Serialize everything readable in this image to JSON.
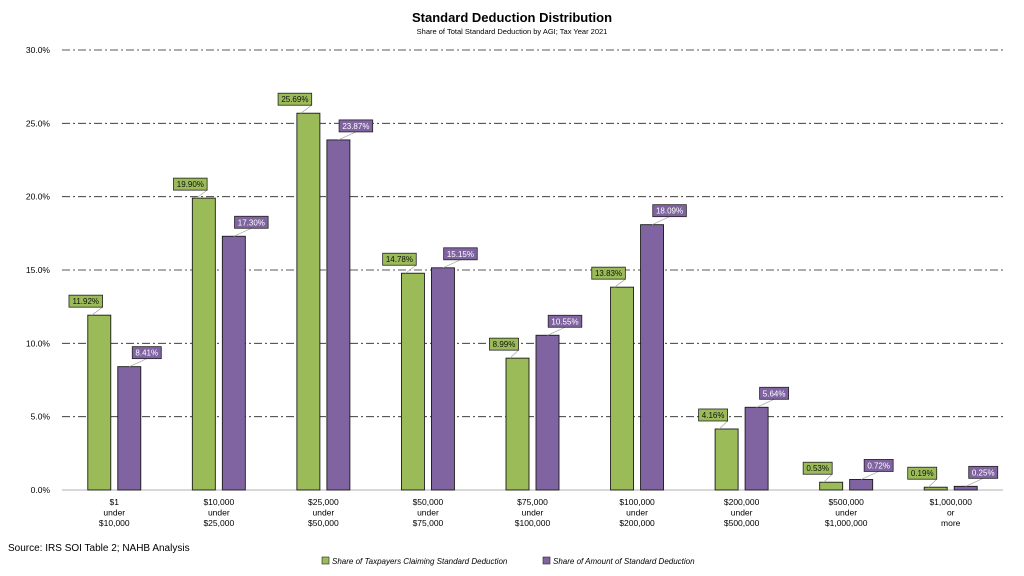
{
  "chart_data": {
    "type": "bar",
    "title": "Standard Deduction Distribution",
    "subtitle": "Share of Total Standard Deduction by AGI; Tax Year 2021",
    "categories": [
      [
        "$1",
        "under",
        "$10,000"
      ],
      [
        "$10,000",
        "under",
        "$25,000"
      ],
      [
        "$25,000",
        "under",
        "$50,000"
      ],
      [
        "$50,000",
        "under",
        "$75,000"
      ],
      [
        "$75,000",
        "under",
        "$100,000"
      ],
      [
        "$100,000",
        "under",
        "$200,000"
      ],
      [
        "$200,000",
        "under",
        "$500,000"
      ],
      [
        "$500,000",
        "under",
        "$1,000,000"
      ],
      [
        "$1,000,000",
        "or",
        "more"
      ]
    ],
    "series": [
      {
        "name": "Share of Taxpayers Claiming Standard Deduction",
        "color": "#9BBB59",
        "values": [
          11.92,
          19.9,
          25.69,
          14.78,
          8.99,
          13.83,
          4.16,
          0.53,
          0.19
        ],
        "labels": [
          "11.92%",
          "19.90%",
          "25.69%",
          "14.78%",
          "8.99%",
          "13.83%",
          "4.16%",
          "0.53%",
          "0.19%"
        ]
      },
      {
        "name": "Share of Amount of Standard Deduction",
        "color": "#8064A2",
        "values": [
          8.41,
          17.3,
          23.87,
          15.15,
          10.55,
          18.09,
          5.64,
          0.72,
          0.25
        ],
        "labels": [
          "8.41%",
          "17.30%",
          "23.87%",
          "15.15%",
          "10.55%",
          "18.09%",
          "5.64%",
          "0.72%",
          "0.25%"
        ]
      }
    ],
    "ylim": [
      0,
      30
    ],
    "yticks": [
      "0.0%",
      "5.0%",
      "10.0%",
      "15.0%",
      "20.0%",
      "25.0%",
      "30.0%"
    ],
    "grid": true,
    "legend_position": "bottom"
  },
  "source": "Source: IRS SOI Table 2;  NAHB Analysis"
}
